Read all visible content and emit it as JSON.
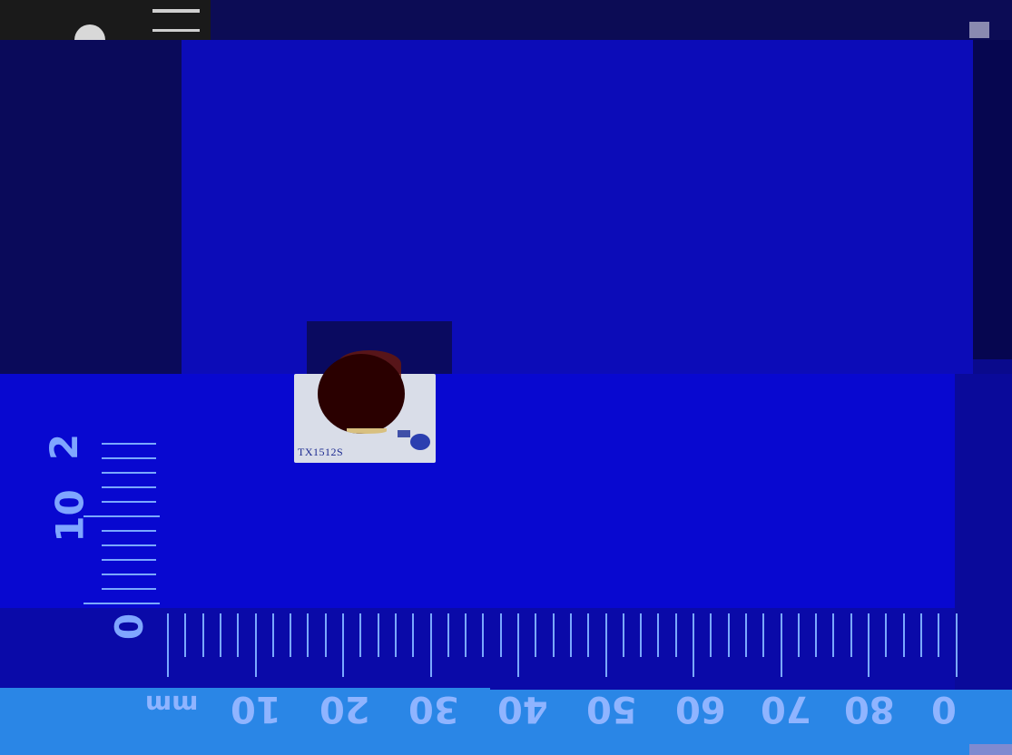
{
  "scene": {
    "description_label": "",
    "component_marking": "TX1512S",
    "ruler_unit": "mm",
    "bottom_ruler_labels": [
      "10",
      "20",
      "30",
      "40",
      "50",
      "60",
      "70",
      "80",
      "0"
    ],
    "left_ruler_labels": [
      "0",
      "10",
      "2"
    ],
    "colors": {
      "background": "#0a0a8c",
      "ruler_text": "#8fb4ff",
      "board": "#d9dde8",
      "lens": "#2a0000"
    }
  }
}
